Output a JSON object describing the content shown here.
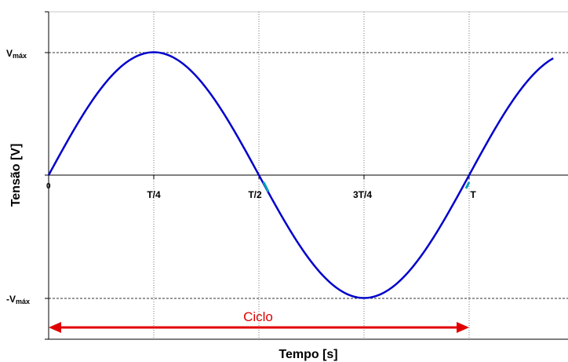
{
  "chart_data": {
    "type": "line",
    "title": "",
    "xlabel": "Tempo [s]",
    "ylabel": "Tensão [V]",
    "x_ticks": [
      "0",
      "T/4",
      "T/2",
      "3T/4",
      "T"
    ],
    "y_ticks": {
      "max_main": "V",
      "max_sub": "máx",
      "min_main": "-V",
      "min_sub": "máx"
    },
    "xlim": [
      0,
      1.2
    ],
    "ylim": [
      -1.3,
      1.3
    ],
    "grid": "vertical dotted at quarter periods; horizontal dashed at ±Vmáx",
    "series": [
      {
        "color": "#0000cc",
        "function": "sine, amplitude Vmáx, period T",
        "x": [
          0,
          0.125,
          0.25,
          0.375,
          0.5,
          0.625,
          0.75,
          0.875,
          1.0,
          1.125,
          1.2
        ],
        "y": [
          0,
          0.707,
          1,
          0.707,
          0,
          -0.707,
          -1,
          -0.707,
          0,
          0.707,
          0.951
        ]
      }
    ],
    "annotations": [
      {
        "text": "Ciclo",
        "from_x": 0,
        "to_x": 1.0,
        "color": "#e00000",
        "style": "double-headed arrow"
      }
    ]
  },
  "colors": {
    "curve": "#0000cc",
    "arrow": "#e00000",
    "grid": "#555555",
    "axis": "#000000"
  }
}
